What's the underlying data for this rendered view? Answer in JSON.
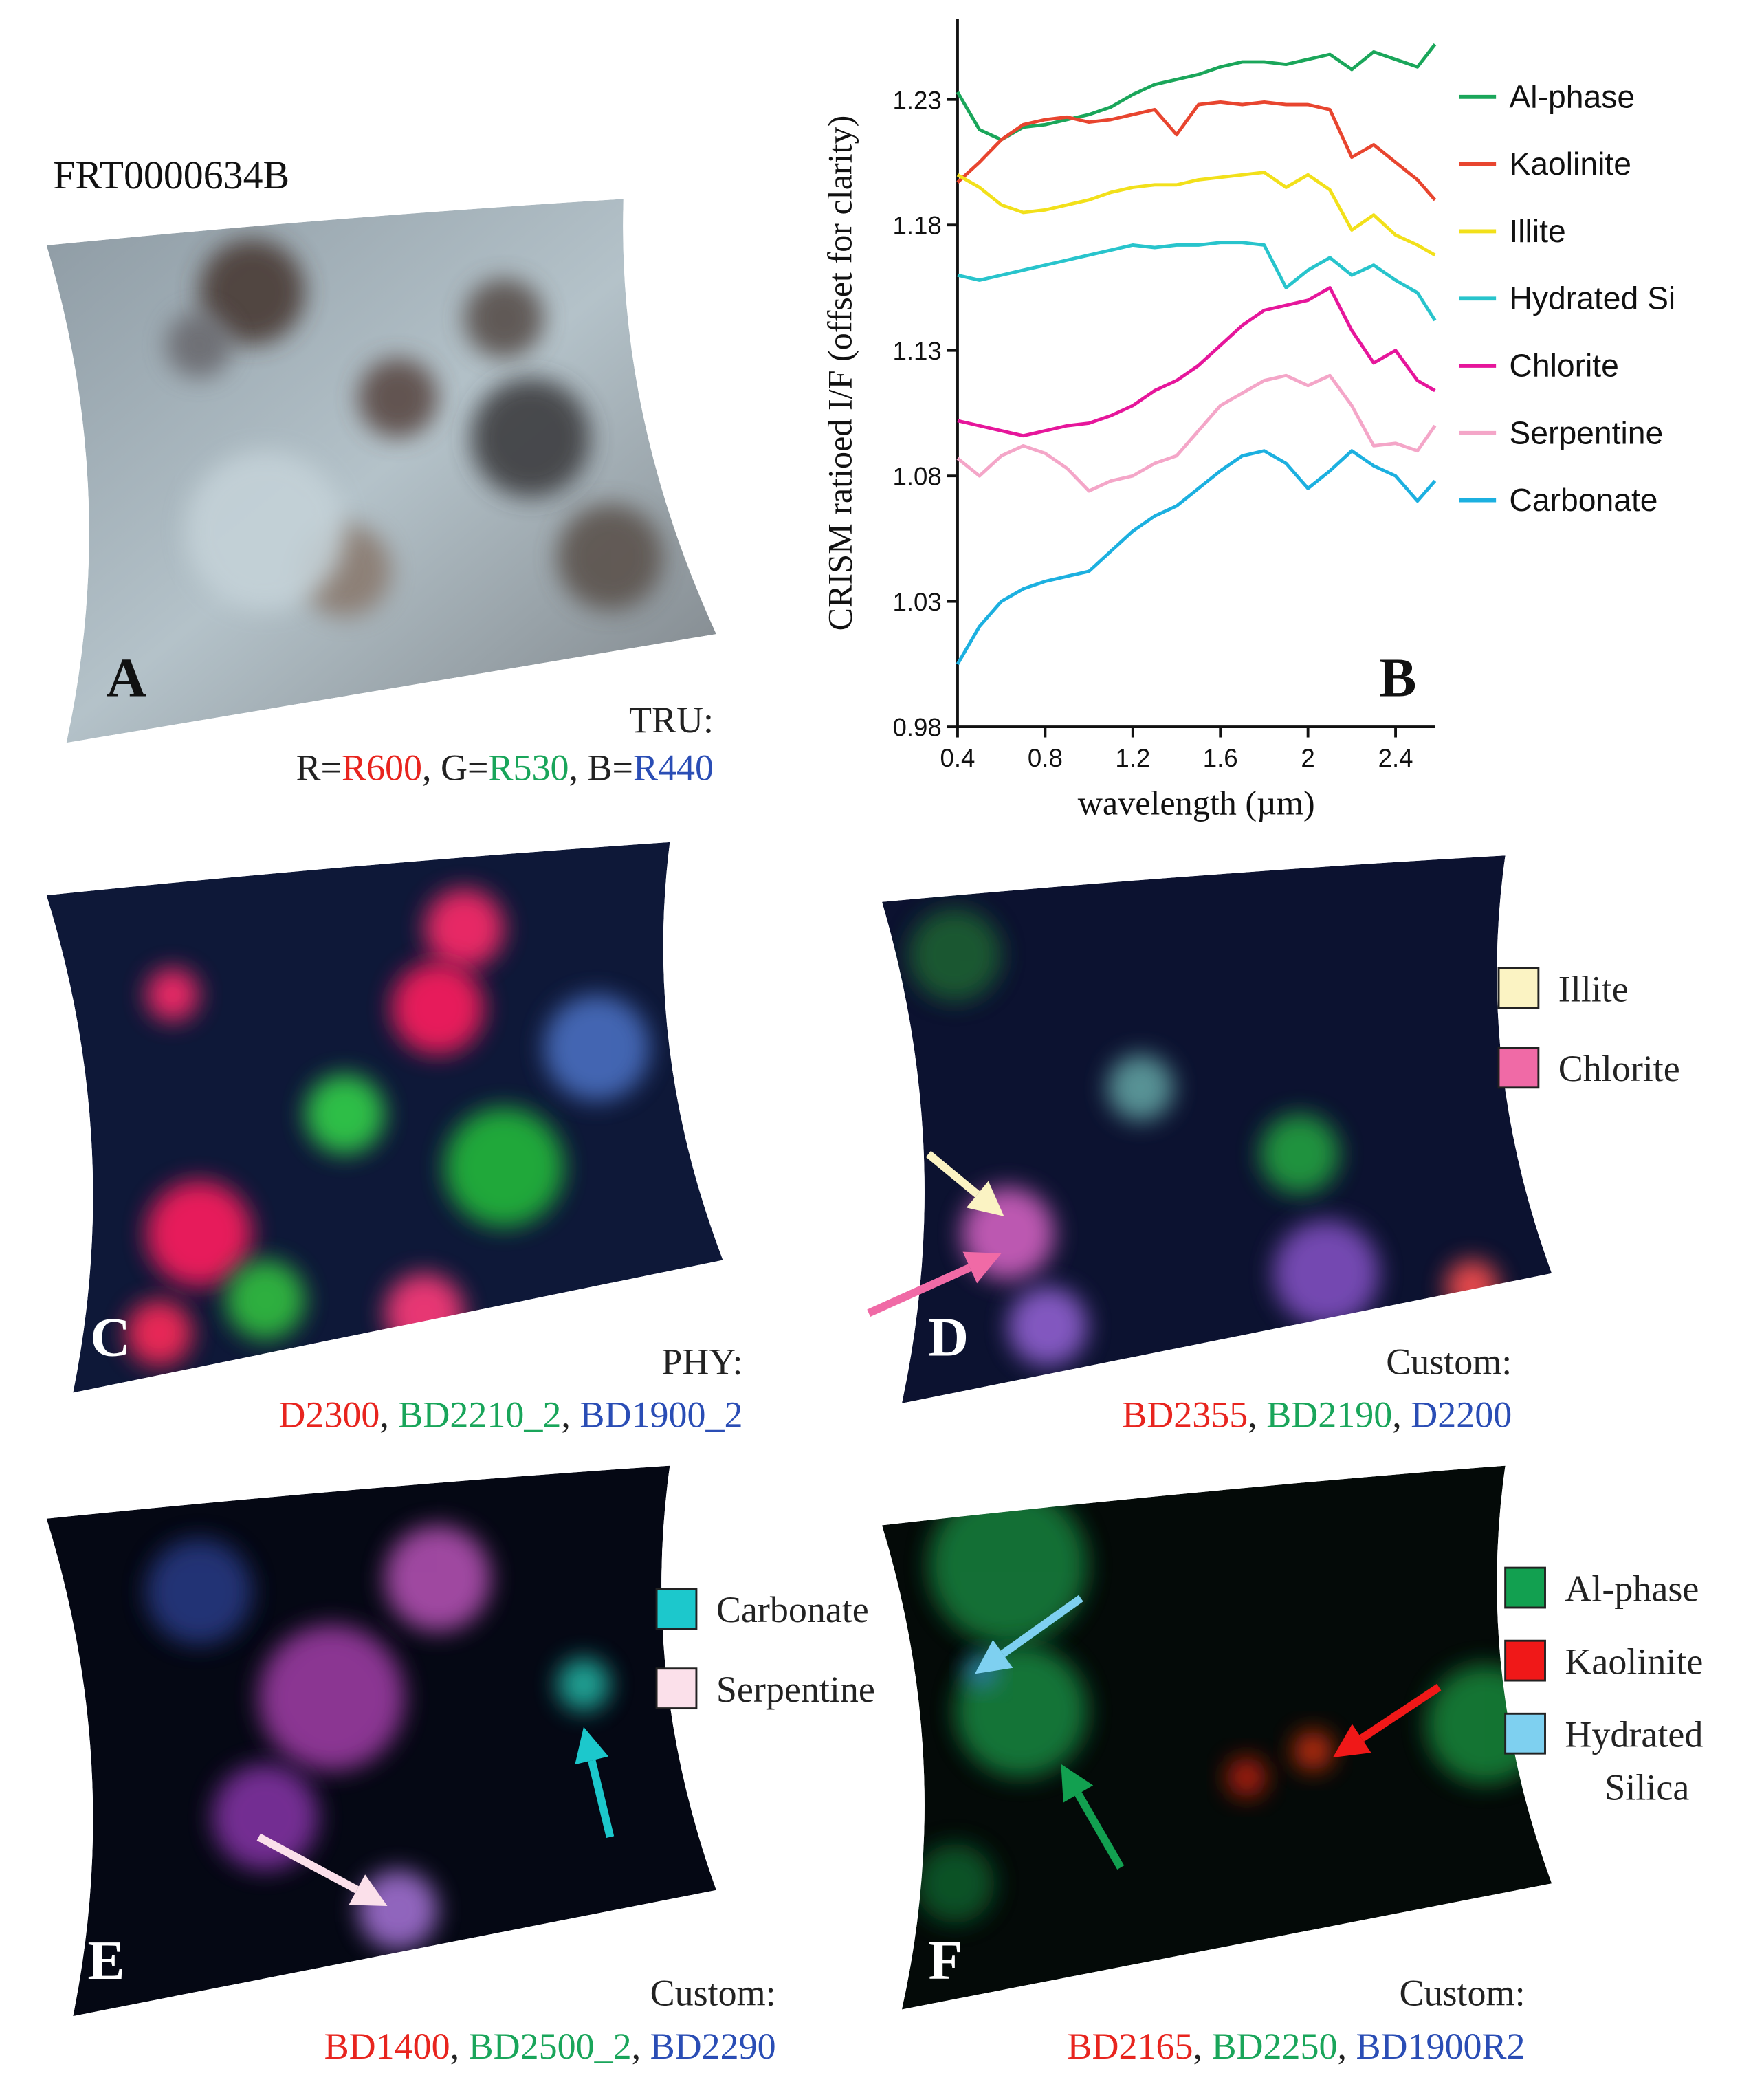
{
  "panels": {
    "A": {
      "label": "A",
      "title": "FRT0000634B",
      "mode": "TRU:",
      "caption": [
        {
          "text": "R=",
          "color": "#222222"
        },
        {
          "text": "R600",
          "color": "#e8241e"
        },
        {
          "text": ", G=",
          "color": "#222222"
        },
        {
          "text": "R530",
          "color": "#19a55a"
        },
        {
          "text": ", B=",
          "color": "#222222"
        },
        {
          "text": "R440",
          "color": "#2a4db5"
        }
      ]
    },
    "C": {
      "label": "C",
      "mode": "PHY:",
      "caption": [
        {
          "text": "D2300",
          "color": "#e8241e"
        },
        {
          "text": ", ",
          "color": "#222222"
        },
        {
          "text": "BD2210_2",
          "color": "#19a55a"
        },
        {
          "text": ", ",
          "color": "#222222"
        },
        {
          "text": "BD1900_2",
          "color": "#2a4db5"
        }
      ]
    },
    "D": {
      "label": "D",
      "mode": "Custom:",
      "caption": [
        {
          "text": "BD2355",
          "color": "#e8241e"
        },
        {
          "text": ", ",
          "color": "#222222"
        },
        {
          "text": "BD2190",
          "color": "#19a55a"
        },
        {
          "text": ", ",
          "color": "#222222"
        },
        {
          "text": "D2200",
          "color": "#2a4db5"
        }
      ],
      "legend": [
        {
          "lines": [
            "Illite"
          ],
          "color": "#fbf3c3"
        },
        {
          "lines": [
            "Chlorite"
          ],
          "color": "#f06aa6"
        }
      ]
    },
    "E": {
      "label": "E",
      "mode": "Custom:",
      "caption": [
        {
          "text": "BD1400",
          "color": "#e8241e"
        },
        {
          "text": ", ",
          "color": "#222222"
        },
        {
          "text": "BD2500_2",
          "color": "#19a55a"
        },
        {
          "text": ", ",
          "color": "#222222"
        },
        {
          "text": "BD2290",
          "color": "#2a4db5"
        }
      ],
      "legend": [
        {
          "lines": [
            "Carbonate"
          ],
          "color": "#1cc8cc"
        },
        {
          "lines": [
            "Serpentine"
          ],
          "color": "#fbe0ea"
        }
      ]
    },
    "F": {
      "label": "F",
      "mode": "Custom:",
      "caption": [
        {
          "text": "BD2165",
          "color": "#e8241e"
        },
        {
          "text": ", ",
          "color": "#222222"
        },
        {
          "text": "BD2250",
          "color": "#19a55a"
        },
        {
          "text": ", ",
          "color": "#222222"
        },
        {
          "text": "BD1900R2",
          "color": "#2a4db5"
        }
      ],
      "legend": [
        {
          "lines": [
            "Al-phase"
          ],
          "color": "#12a050"
        },
        {
          "lines": [
            "Kaolinite"
          ],
          "color": "#f01818"
        },
        {
          "lines": [
            "Hydrated",
            "Silica"
          ],
          "color": "#7ed0f0"
        }
      ]
    }
  },
  "chart_data": {
    "type": "line",
    "panel_label": "B",
    "xlabel": "wavelength (µm)",
    "ylabel": "CRISM ratioed I/F (offset for clarity)",
    "xlim": [
      0.4,
      2.58
    ],
    "ylim": [
      0.98,
      1.262
    ],
    "xticks": [
      0.4,
      0.8,
      1.2,
      1.6,
      2.0,
      2.4
    ],
    "yticks": [
      0.98,
      1.03,
      1.08,
      1.13,
      1.18,
      1.23
    ],
    "x": [
      0.4,
      0.5,
      0.6,
      0.7,
      0.8,
      0.9,
      1.0,
      1.1,
      1.2,
      1.3,
      1.4,
      1.5,
      1.6,
      1.7,
      1.8,
      1.9,
      2.0,
      2.1,
      2.2,
      2.3,
      2.4,
      2.5,
      2.58
    ],
    "series": [
      {
        "name": "Al-phase",
        "color": "#1aa65a",
        "values": [
          1.233,
          1.218,
          1.214,
          1.219,
          1.22,
          1.222,
          1.224,
          1.227,
          1.232,
          1.236,
          1.238,
          1.24,
          1.243,
          1.245,
          1.245,
          1.244,
          1.246,
          1.248,
          1.242,
          1.249,
          1.246,
          1.243,
          1.252
        ]
      },
      {
        "name": "Kaolinite",
        "color": "#e8452f",
        "values": [
          1.197,
          1.205,
          1.214,
          1.22,
          1.222,
          1.223,
          1.221,
          1.222,
          1.224,
          1.226,
          1.216,
          1.228,
          1.229,
          1.228,
          1.229,
          1.228,
          1.228,
          1.226,
          1.207,
          1.212,
          1.205,
          1.198,
          1.19
        ]
      },
      {
        "name": "Illite",
        "color": "#f2e01a",
        "values": [
          1.2,
          1.195,
          1.188,
          1.185,
          1.186,
          1.188,
          1.19,
          1.193,
          1.195,
          1.196,
          1.196,
          1.198,
          1.199,
          1.2,
          1.201,
          1.195,
          1.2,
          1.194,
          1.178,
          1.184,
          1.176,
          1.172,
          1.168
        ]
      },
      {
        "name": "Hydrated Si",
        "color": "#28c4cc",
        "values": [
          1.16,
          1.158,
          1.16,
          1.162,
          1.164,
          1.166,
          1.168,
          1.17,
          1.172,
          1.171,
          1.172,
          1.172,
          1.173,
          1.173,
          1.172,
          1.155,
          1.162,
          1.167,
          1.16,
          1.164,
          1.158,
          1.153,
          1.142
        ]
      },
      {
        "name": "Chlorite",
        "color": "#e6169b",
        "values": [
          1.102,
          1.1,
          1.098,
          1.096,
          1.098,
          1.1,
          1.101,
          1.104,
          1.108,
          1.114,
          1.118,
          1.124,
          1.132,
          1.14,
          1.146,
          1.148,
          1.15,
          1.155,
          1.138,
          1.125,
          1.13,
          1.118,
          1.114
        ]
      },
      {
        "name": "Serpentine",
        "color": "#f4a6c8",
        "values": [
          1.087,
          1.08,
          1.088,
          1.092,
          1.089,
          1.083,
          1.074,
          1.078,
          1.08,
          1.085,
          1.088,
          1.098,
          1.108,
          1.113,
          1.118,
          1.12,
          1.116,
          1.12,
          1.108,
          1.092,
          1.093,
          1.09,
          1.1
        ]
      },
      {
        "name": "Carbonate",
        "color": "#1cb0e0",
        "values": [
          1.005,
          1.02,
          1.03,
          1.035,
          1.038,
          1.04,
          1.042,
          1.05,
          1.058,
          1.064,
          1.068,
          1.075,
          1.082,
          1.088,
          1.09,
          1.085,
          1.075,
          1.082,
          1.09,
          1.084,
          1.08,
          1.07,
          1.078
        ]
      }
    ]
  }
}
